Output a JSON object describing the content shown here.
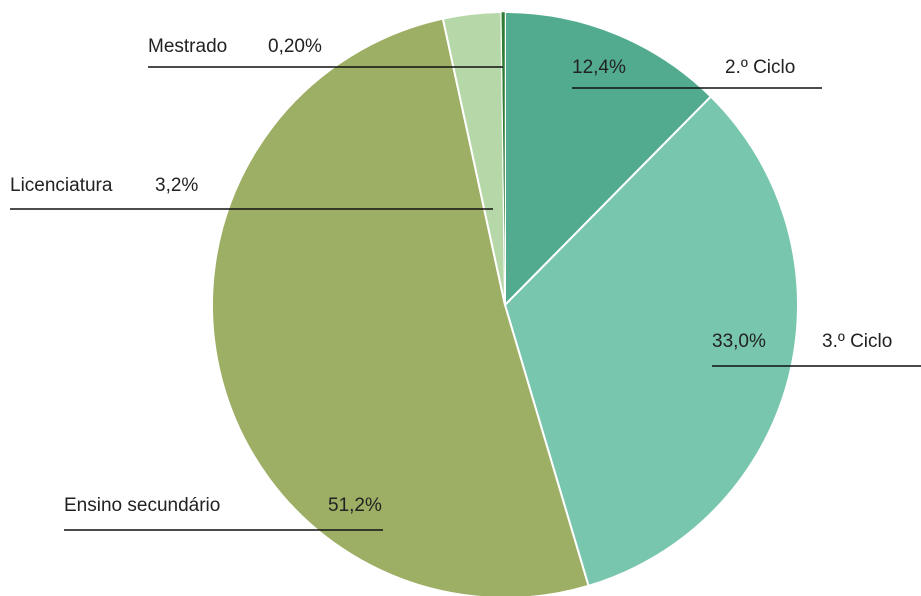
{
  "chart_data": {
    "type": "pie",
    "categories": [
      "2.º Ciclo",
      "3.º Ciclo",
      "Ensino secundário",
      "Licenciatura",
      "Mestrado"
    ],
    "values": [
      12.4,
      33.0,
      51.2,
      3.2,
      0.2
    ],
    "value_labels": [
      "12,4%",
      "33,0%",
      "51,2%",
      "3,2%",
      "0,20%"
    ],
    "colors": [
      "#52ab8f",
      "#78c6ad",
      "#9daf64",
      "#b6d7a8",
      "#2e7d32"
    ]
  }
}
